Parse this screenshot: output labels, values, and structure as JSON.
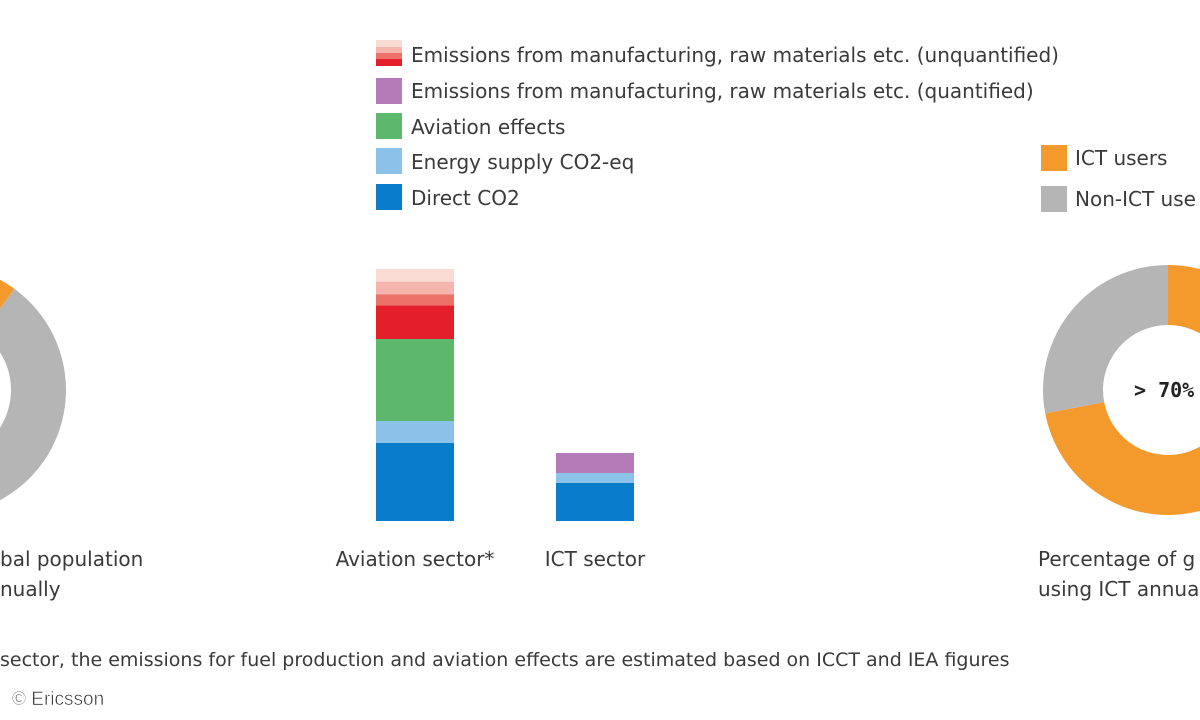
{
  "colors": {
    "direct_co2": "#0a7ccc",
    "energy_supply": "#8cc1ea",
    "aviation_effects": "#5db86d",
    "manufacturing_quantified": "#b57ab8",
    "manufacturing_unquantified_dark": "#e41e2b",
    "manufacturing_unquantified_mid": "#ec7168",
    "manufacturing_unquantified_light": "#f5b5ac",
    "manufacturing_unquantified_pale": "#fbdcd5",
    "ict_users": "#f49a2c",
    "non_ict_users": "#b5b5b5"
  },
  "chart_data": [
    {
      "type": "pie",
      "subtype": "donut",
      "slices": [
        {
          "name": "ICT users",
          "share": 0.05
        },
        {
          "name": "Non-ICT users",
          "share": 0.95
        }
      ],
      "caption_lines": [
        "bal population",
        "nually"
      ]
    },
    {
      "type": "bar",
      "stacked": true,
      "categories": [
        "Aviation sector*",
        "ICT sector"
      ],
      "series": [
        {
          "name": "Direct CO2",
          "values": [
            78,
            38
          ]
        },
        {
          "name": "Energy supply CO2-eq",
          "values": [
            22,
            10
          ]
        },
        {
          "name": "Aviation effects",
          "values": [
            82,
            0
          ]
        },
        {
          "name": "Emissions from manufacturing, raw materials etc. (quantified)",
          "values": [
            0,
            20
          ]
        },
        {
          "name": "Emissions from manufacturing, raw materials etc. (unquantified)",
          "values": [
            70,
            0
          ]
        }
      ],
      "legend_order": [
        "Emissions from manufacturing, raw materials etc. (unquantified)",
        "Emissions from manufacturing, raw materials etc. (quantified)",
        "Aviation effects",
        "Energy supply CO2-eq",
        "Direct CO2"
      ],
      "legend_position": "top",
      "axes_visible": false,
      "ylim": [
        0,
        260
      ]
    },
    {
      "type": "pie",
      "subtype": "donut",
      "center_label": "> 70%",
      "slices": [
        {
          "name": "ICT users",
          "share": 0.72
        },
        {
          "name": "Non-ICT users",
          "share": 0.28
        }
      ],
      "legend": [
        "ICT users",
        "Non-ICT use"
      ],
      "caption_lines": [
        "Percentage of g",
        "using ICT annua"
      ]
    }
  ],
  "footnote": "sector, the emissions for fuel production and aviation effects are estimated based on ICCT and IEA figures",
  "credit": "© Ericsson"
}
